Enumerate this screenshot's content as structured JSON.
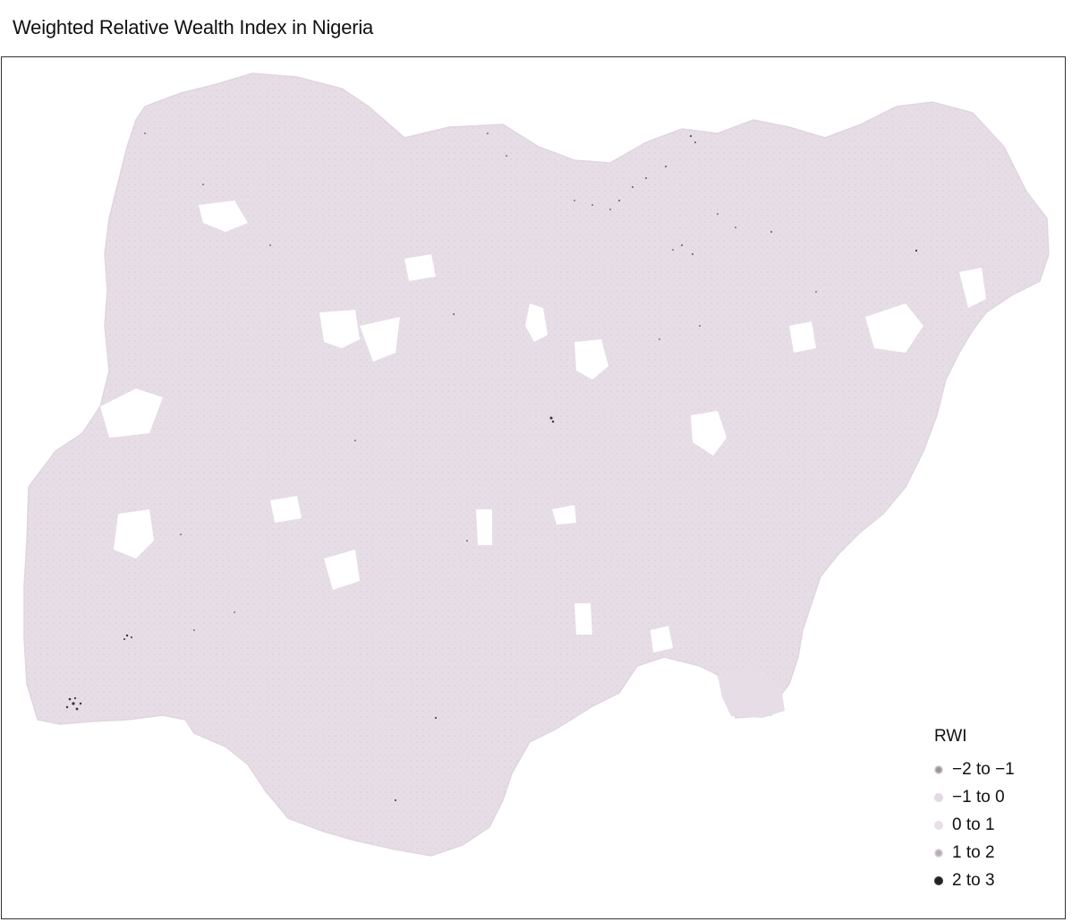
{
  "title": "Weighted Relative Wealth Index in Nigeria",
  "colors": {
    "land_fill": "#e6dde6",
    "land_texture": "#d9ced9",
    "panel_border": "#333333"
  },
  "legend": {
    "title": "RWI",
    "items": [
      {
        "label": "−2 to −1",
        "color": "#9a939a",
        "style": "speckled"
      },
      {
        "label": "−1 to 0",
        "color": "#e3d9e3",
        "style": "solid"
      },
      {
        "label": "0 to 1",
        "color": "#e8dfe8",
        "style": "solid"
      },
      {
        "label": "1 to 2",
        "color": "#b5aeb5",
        "style": "speckled"
      },
      {
        "label": "2 to 3",
        "color": "#3a3a3a",
        "style": "dark"
      }
    ]
  }
}
